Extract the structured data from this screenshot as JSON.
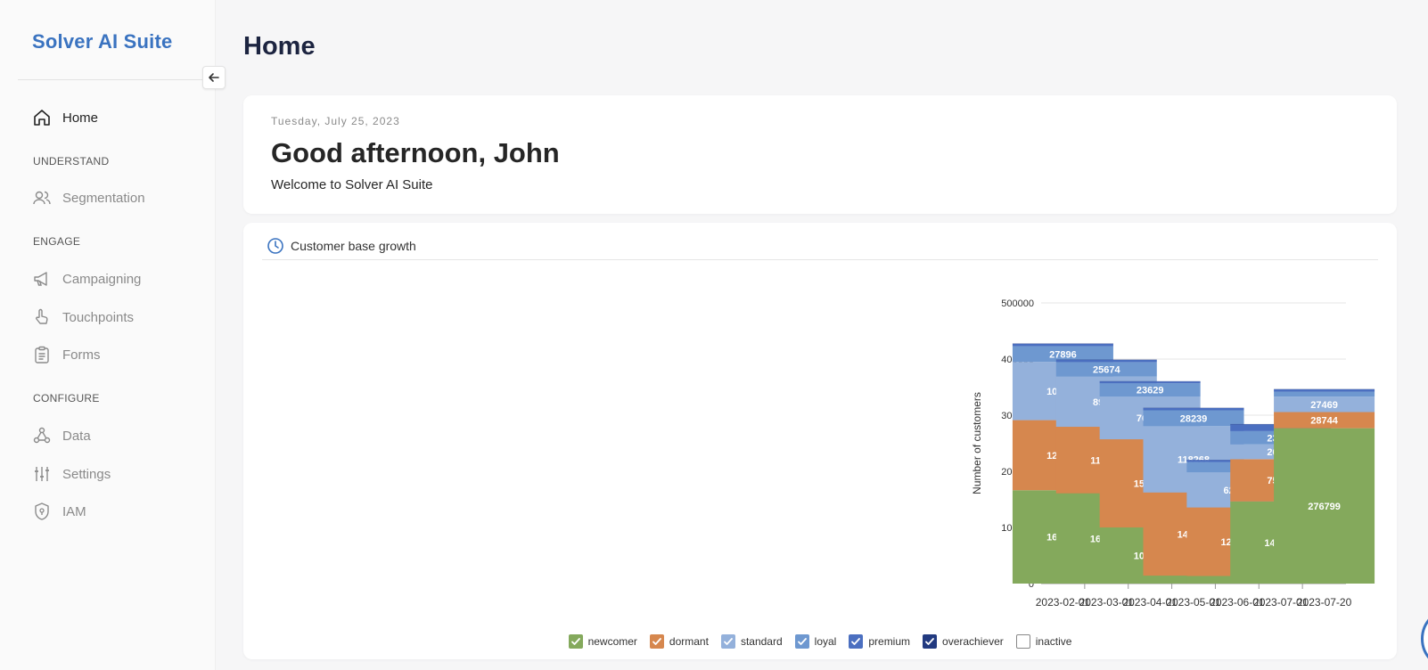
{
  "app": {
    "brand": "Solver AI Suite"
  },
  "sidebar": {
    "home": {
      "label": "Home",
      "icon": "home-icon"
    },
    "sections": [
      {
        "title": "UNDERSTAND",
        "items": [
          {
            "label": "Segmentation",
            "icon": "users-icon"
          }
        ]
      },
      {
        "title": "ENGAGE",
        "items": [
          {
            "label": "Campaigning",
            "icon": "megaphone-icon"
          },
          {
            "label": "Touchpoints",
            "icon": "hand-pointer-icon"
          },
          {
            "label": "Forms",
            "icon": "clipboard-icon"
          }
        ]
      },
      {
        "title": "CONFIGURE",
        "items": [
          {
            "label": "Data",
            "icon": "network-icon"
          },
          {
            "label": "Settings",
            "icon": "sliders-icon"
          },
          {
            "label": "IAM",
            "icon": "shield-icon"
          }
        ]
      }
    ]
  },
  "header": {
    "title": "Home"
  },
  "greeting": {
    "date": "Tuesday, July 25, 2023",
    "headline": "Good afternoon, John",
    "subtitle": "Welcome to Solver AI Suite"
  },
  "chart_card": {
    "title": "Customer base growth"
  },
  "chart_data": {
    "type": "bar",
    "stacked": true,
    "ylabel": "Number of customers",
    "xlabel": "",
    "ylim": [
      0,
      500000
    ],
    "yticks": [
      0,
      100000,
      200000,
      300000,
      400000,
      500000
    ],
    "categories": [
      "2023-02-01",
      "2023-03-01",
      "2023-04-01",
      "2023-05-01",
      "2023-06-01",
      "2023-07-01",
      "2023-07-20"
    ],
    "series": [
      {
        "name": "newcomer",
        "color": "#84a95c",
        "values": [
          166305,
          160797,
          100063,
          14166,
          13500,
          146314,
          276799
        ]
      },
      {
        "name": "dormant",
        "color": "#d6874e",
        "values": [
          124866,
          118517,
          156996,
          148073,
          122049,
          75316,
          28744
        ]
      },
      {
        "name": "standard",
        "color": "#94b1db",
        "values": [
          103744,
          89599,
          76246,
          118268,
          62833,
          26313,
          27469
        ]
      },
      {
        "name": "loyal",
        "color": "#6e98d0",
        "values": [
          27896,
          25674,
          23629,
          28239,
          18177,
          23678,
          9000
        ]
      },
      {
        "name": "premium",
        "color": "#4b6fc0",
        "values": [
          4500,
          3800,
          3200,
          4000,
          3500,
          12000,
          4000
        ]
      },
      {
        "name": "overachiever",
        "color": "#223a80",
        "values": [
          500,
          500,
          400,
          400,
          300,
          600,
          400
        ]
      },
      {
        "name": "inactive",
        "color": "#ffffff",
        "values": [
          0,
          0,
          0,
          0,
          0,
          0,
          0
        ]
      }
    ],
    "legend_position": "bottom",
    "grid": true
  }
}
